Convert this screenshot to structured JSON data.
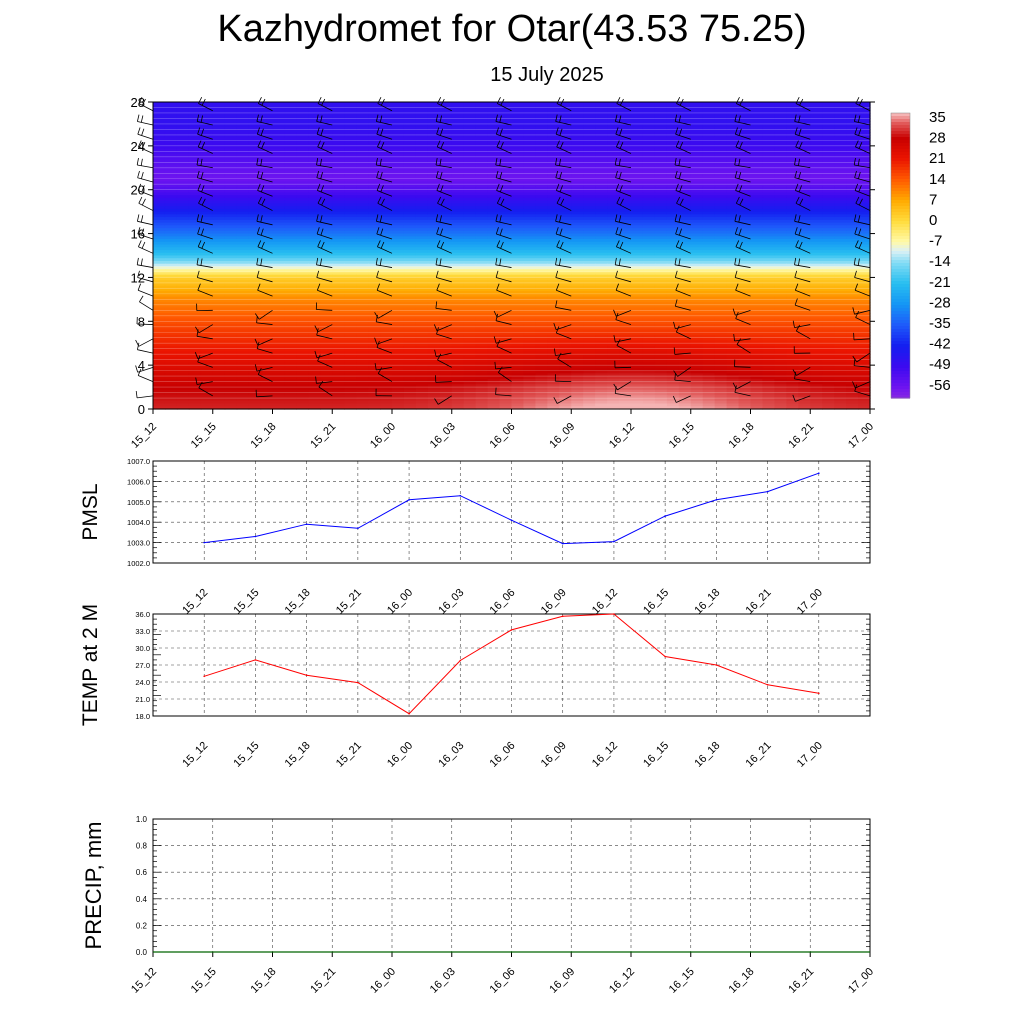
{
  "header": {
    "title": "Kazhydromet for Otar(43.53 75.25)",
    "subtitle": "15 July 2025"
  },
  "colors": {
    "pmsl_line": "#0000ff",
    "temp_line": "#ff0000",
    "precip_line": "#006400",
    "grid": "#000000"
  },
  "chart_data": [
    {
      "type": "heatmap",
      "title": "",
      "xlabel": "",
      "ylabel": "",
      "x": [
        "15_12",
        "15_15",
        "15_18",
        "15_21",
        "16_00",
        "16_03",
        "16_06",
        "16_09",
        "16_12",
        "16_15",
        "16_18",
        "16_21",
        "17_00"
      ],
      "yticks": [
        0,
        4,
        8,
        12,
        16,
        20,
        24,
        28
      ],
      "ylim": [
        0,
        28
      ],
      "colorbar_labels": [
        "35",
        "28",
        "21",
        "14",
        "7",
        "0",
        "-7",
        "-14",
        "-21",
        "-28",
        "-35",
        "-42",
        "-49",
        "-56"
      ],
      "vertical_temperature_profile": {
        "levels": [
          0,
          2,
          4,
          6,
          8,
          10,
          12,
          13,
          14,
          16,
          18,
          20,
          21,
          22,
          24,
          26,
          28
        ],
        "values": [
          33,
          30,
          25,
          20,
          15,
          10,
          2,
          -10,
          -20,
          -32,
          -42,
          -52,
          -56,
          -54,
          -49,
          -47,
          -47
        ]
      },
      "surface_warm_peak": {
        "x": "16_12",
        "value": 35
      },
      "wind_barbs": true
    },
    {
      "type": "line",
      "ylabel": "PMSL",
      "x": [
        "15_12",
        "15_15",
        "15_18",
        "15_21",
        "16_00",
        "16_03",
        "16_06",
        "16_09",
        "16_12",
        "16_15",
        "16_18",
        "16_21",
        "17_00"
      ],
      "yticks": [
        "1002.0",
        "1003.0",
        "1004.0",
        "1005.0",
        "1006.0",
        "1007.0"
      ],
      "ylim": [
        1002,
        1007
      ],
      "series": [
        {
          "values": [
            1003.0,
            1003.3,
            1003.9,
            1003.7,
            1005.1,
            1005.3,
            1004.1,
            1002.95,
            1003.05,
            1004.3,
            1005.1,
            1005.5,
            1006.4
          ]
        }
      ]
    },
    {
      "type": "line",
      "ylabel": "TEMP at 2 M",
      "x": [
        "15_12",
        "15_15",
        "15_18",
        "15_21",
        "16_00",
        "16_03",
        "16_06",
        "16_09",
        "16_12",
        "16_15",
        "16_18",
        "16_21",
        "17_00"
      ],
      "yticks": [
        "18.0",
        "21.0",
        "24.0",
        "27.0",
        "30.0",
        "33.0",
        "36.0"
      ],
      "ylim": [
        18,
        36
      ],
      "series": [
        {
          "values": [
            25.0,
            27.9,
            25.2,
            23.9,
            18.4,
            27.8,
            33.2,
            35.6,
            36.0,
            28.5,
            27.0,
            23.5,
            22.0
          ]
        }
      ]
    },
    {
      "type": "line",
      "ylabel": "PRECIP, mm",
      "x": [
        "15_12",
        "15_15",
        "15_18",
        "15_21",
        "16_00",
        "16_03",
        "16_06",
        "16_09",
        "16_12",
        "16_15",
        "16_18",
        "16_21",
        "17_00"
      ],
      "yticks": [
        "0.0",
        "0.2",
        "0.4",
        "0.6",
        "0.8",
        "1.0"
      ],
      "ylim": [
        0,
        1
      ],
      "series": [
        {
          "values": [
            0,
            0,
            0,
            0,
            0,
            0,
            0,
            0,
            0,
            0,
            0,
            0,
            0
          ]
        }
      ]
    }
  ]
}
